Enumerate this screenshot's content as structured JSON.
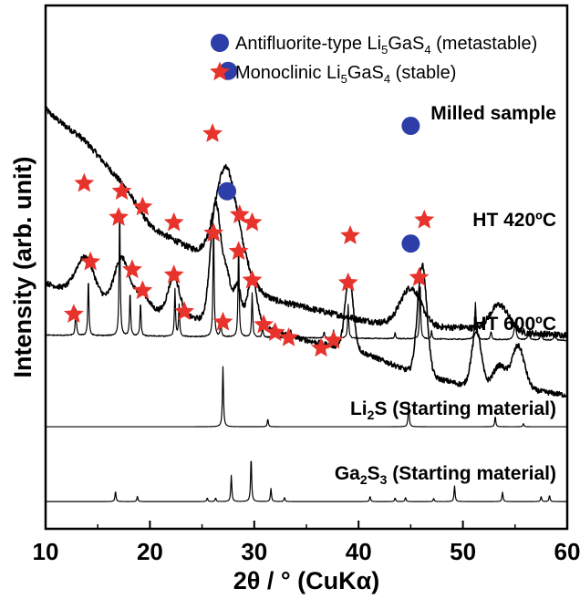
{
  "chart_data": {
    "type": "line",
    "title": "",
    "xlabel": "2θ / ° (CuKα)",
    "ylabel": "Intensity (arb. unit)",
    "xlim": [
      10,
      60
    ],
    "x_ticks": [
      10,
      20,
      30,
      40,
      50,
      60
    ],
    "x_tick_labels": [
      "10",
      "20",
      "30",
      "40",
      "50",
      "60"
    ],
    "grid": false,
    "colors": {
      "line": "#000000",
      "circle": "#2d3ea8",
      "star": "#e8332c"
    },
    "legend": {
      "placement": "top-right",
      "entries": [
        {
          "marker": "blue-circle",
          "text": "Antifluorite-type Li",
          "sub1": "5",
          "text2": "GaS",
          "sub2": "4",
          "text3": " (metastable)"
        },
        {
          "marker": "red-star",
          "text": "Monoclinic Li",
          "sub1": "5",
          "text2": "GaS",
          "sub2": "4",
          "text3": " (stable)"
        }
      ]
    },
    "series": [
      {
        "name": "Milled sample",
        "name_parts": [
          "Milled sample"
        ],
        "kind": "broad",
        "baseline": [
          [
            10,
            0.8
          ],
          [
            20,
            0.575
          ],
          [
            25,
            0.525
          ],
          [
            30,
            0.445
          ],
          [
            40,
            0.4
          ],
          [
            45,
            0.385
          ],
          [
            50,
            0.385
          ],
          [
            55,
            0.375
          ],
          [
            60,
            0.37
          ]
        ],
        "peaks": [
          [
            14,
            0.025,
            1.8
          ],
          [
            17.5,
            0.02,
            1.5
          ],
          [
            27.2,
            0.17,
            1.0
          ],
          [
            28.5,
            0.05,
            1.3
          ],
          [
            45.0,
            0.075,
            1.0
          ],
          [
            53.5,
            0.05,
            0.9
          ]
        ],
        "noise": 0.012,
        "markers": [
          {
            "type": "circle",
            "x": 27.5,
            "y": 0.875
          },
          {
            "type": "circle",
            "x": 45.0,
            "y": 0.77
          }
        ]
      },
      {
        "name": "HT 420ºC",
        "name_parts": [
          "HT 420ºC"
        ],
        "kind": "broad",
        "baseline": [
          [
            10,
            0.47
          ],
          [
            15,
            0.435
          ],
          [
            20,
            0.42
          ],
          [
            25,
            0.4
          ],
          [
            30,
            0.39
          ],
          [
            35,
            0.36
          ],
          [
            40,
            0.34
          ],
          [
            45,
            0.3
          ],
          [
            50,
            0.275
          ],
          [
            55,
            0.27
          ],
          [
            60,
            0.255
          ]
        ],
        "peaks": [
          [
            13.8,
            0.075,
            0.9
          ],
          [
            17.3,
            0.09,
            0.7
          ],
          [
            19.2,
            0.03,
            0.6
          ],
          [
            22.3,
            0.07,
            0.55
          ],
          [
            26.3,
            0.225,
            0.5
          ],
          [
            27.4,
            0.08,
            0.4
          ],
          [
            28.4,
            0.07,
            0.35
          ],
          [
            29.8,
            0.09,
            0.45
          ],
          [
            39.1,
            0.135,
            0.4
          ],
          [
            46.1,
            0.21,
            0.45
          ],
          [
            51.3,
            0.105,
            0.45
          ],
          [
            53.5,
            0.04,
            0.6
          ],
          [
            55.3,
            0.08,
            0.6
          ]
        ],
        "noise": 0.01,
        "markers": [
          {
            "type": "star",
            "x": 13.7,
            "y": 0.66
          },
          {
            "type": "star",
            "x": 17.3,
            "y": 0.645
          },
          {
            "type": "star",
            "x": 19.3,
            "y": 0.615
          },
          {
            "type": "star",
            "x": 22.3,
            "y": 0.585
          },
          {
            "type": "star",
            "x": 26.0,
            "y": 0.755
          },
          {
            "type": "circle",
            "x": 27.4,
            "y": 0.645
          },
          {
            "type": "star",
            "x": 28.6,
            "y": 0.6
          },
          {
            "type": "star",
            "x": 29.8,
            "y": 0.585
          },
          {
            "type": "star",
            "x": 39.2,
            "y": 0.56
          },
          {
            "type": "circle",
            "x": 45.0,
            "y": 0.545
          },
          {
            "type": "star",
            "x": 46.3,
            "y": 0.59
          }
        ]
      },
      {
        "name": "HT 600ºC",
        "name_parts": [
          "HT 600ºC"
        ],
        "kind": "sharp",
        "baseline": [
          [
            10,
            0.37
          ],
          [
            60,
            0.36
          ]
        ],
        "peaks": [
          [
            12.9,
            0.055,
            0.12
          ],
          [
            14.1,
            0.11,
            0.12
          ],
          [
            17.1,
            0.255,
            0.12
          ],
          [
            18.1,
            0.085,
            0.12
          ],
          [
            19.1,
            0.065,
            0.12
          ],
          [
            22.4,
            0.09,
            0.12
          ],
          [
            22.8,
            0.06,
            0.12
          ],
          [
            26.1,
            0.225,
            0.12
          ],
          [
            26.8,
            0.03,
            0.12
          ],
          [
            28.5,
            0.185,
            0.12
          ],
          [
            29.8,
            0.085,
            0.12
          ],
          [
            30.8,
            0.02,
            0.12
          ],
          [
            31.9,
            0.025,
            0.12
          ],
          [
            33.5,
            0.015,
            0.12
          ],
          [
            36.7,
            0.012,
            0.12
          ],
          [
            37.6,
            0.015,
            0.12
          ],
          [
            39.0,
            0.065,
            0.12
          ],
          [
            43.5,
            0.012,
            0.12
          ],
          [
            45.9,
            0.11,
            0.12
          ],
          [
            47.0,
            0.015,
            0.12
          ],
          [
            51.2,
            0.07,
            0.15
          ],
          [
            52.7,
            0.015,
            0.15
          ],
          [
            55.0,
            0.03,
            0.25
          ],
          [
            56.3,
            0.015,
            0.2
          ],
          [
            57.5,
            0.012,
            0.2
          ],
          [
            58.8,
            0.01,
            0.2
          ]
        ],
        "noise": 0.002,
        "markers": [
          {
            "type": "star",
            "x": 12.7,
            "y": 0.41
          },
          {
            "type": "star",
            "x": 14.3,
            "y": 0.51
          },
          {
            "type": "star",
            "x": 17.0,
            "y": 0.595
          },
          {
            "type": "star",
            "x": 18.3,
            "y": 0.495
          },
          {
            "type": "star",
            "x": 19.3,
            "y": 0.455
          },
          {
            "type": "star",
            "x": 22.3,
            "y": 0.485
          },
          {
            "type": "star",
            "x": 23.3,
            "y": 0.415
          },
          {
            "type": "star",
            "x": 26.1,
            "y": 0.565
          },
          {
            "type": "star",
            "x": 27.0,
            "y": 0.395
          },
          {
            "type": "star",
            "x": 28.5,
            "y": 0.53
          },
          {
            "type": "star",
            "x": 29.8,
            "y": 0.475
          },
          {
            "type": "star",
            "x": 30.9,
            "y": 0.39
          },
          {
            "type": "star",
            "x": 32.0,
            "y": 0.375
          },
          {
            "type": "star",
            "x": 33.3,
            "y": 0.365
          },
          {
            "type": "star",
            "x": 36.4,
            "y": 0.345
          },
          {
            "type": "star",
            "x": 37.6,
            "y": 0.36
          },
          {
            "type": "star",
            "x": 39.0,
            "y": 0.47
          },
          {
            "type": "star",
            "x": 45.8,
            "y": 0.48
          }
        ]
      },
      {
        "name": "Li2S (Starting material)",
        "name_parts": [
          "Li",
          "2",
          "S (Starting material)"
        ],
        "kind": "sharp",
        "baseline": [
          [
            10,
            0.195
          ],
          [
            60,
            0.195
          ]
        ],
        "peaks": [
          [
            27.0,
            0.115,
            0.12
          ],
          [
            31.3,
            0.015,
            0.12
          ],
          [
            44.8,
            0.045,
            0.12
          ],
          [
            53.1,
            0.02,
            0.12
          ],
          [
            55.8,
            0.006,
            0.12
          ]
        ],
        "noise": 0.0,
        "markers": []
      },
      {
        "name": "Ga2S3 (Starting material)",
        "name_parts": [
          "Ga",
          "2",
          "S",
          "3",
          " (Starting material)"
        ],
        "kind": "sharp",
        "baseline": [
          [
            10,
            0.052
          ],
          [
            60,
            0.052
          ]
        ],
        "peaks": [
          [
            16.7,
            0.02,
            0.12
          ],
          [
            18.8,
            0.01,
            0.12
          ],
          [
            25.5,
            0.007,
            0.12
          ],
          [
            26.3,
            0.007,
            0.12
          ],
          [
            27.8,
            0.05,
            0.12
          ],
          [
            29.7,
            0.085,
            0.12
          ],
          [
            31.6,
            0.025,
            0.12
          ],
          [
            32.9,
            0.008,
            0.12
          ],
          [
            41.1,
            0.01,
            0.12
          ],
          [
            43.5,
            0.007,
            0.12
          ],
          [
            44.5,
            0.008,
            0.12
          ],
          [
            47.2,
            0.006,
            0.12
          ],
          [
            49.2,
            0.03,
            0.12
          ],
          [
            53.8,
            0.018,
            0.12
          ],
          [
            57.5,
            0.01,
            0.12
          ],
          [
            58.3,
            0.012,
            0.12
          ]
        ],
        "noise": 0.0,
        "markers": []
      }
    ]
  }
}
